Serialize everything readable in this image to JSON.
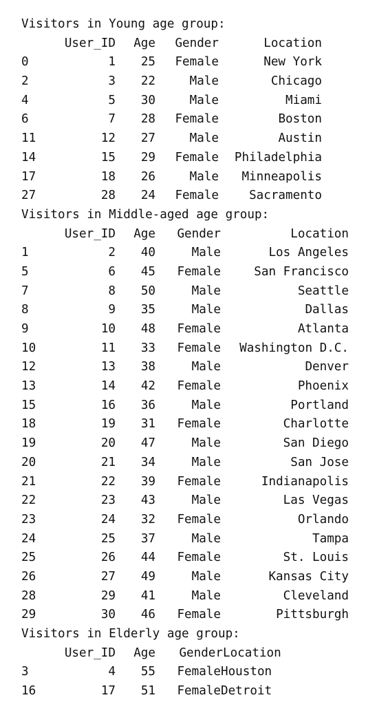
{
  "groups": [
    {
      "key": "young",
      "title": "Visitors in Young age group:",
      "headers": [
        "",
        "User_ID",
        "Age",
        "Gender",
        "Location"
      ],
      "rows": [
        [
          "0",
          "1",
          "25",
          "Female",
          "New York"
        ],
        [
          "2",
          "3",
          "22",
          "Male",
          "Chicago"
        ],
        [
          "4",
          "5",
          "30",
          "Male",
          "Miami"
        ],
        [
          "6",
          "7",
          "28",
          "Female",
          "Boston"
        ],
        [
          "11",
          "12",
          "27",
          "Male",
          "Austin"
        ],
        [
          "14",
          "15",
          "29",
          "Female",
          "Philadelphia"
        ],
        [
          "17",
          "18",
          "26",
          "Male",
          "Minneapolis"
        ],
        [
          "27",
          "28",
          "24",
          "Female",
          "Sacramento"
        ]
      ]
    },
    {
      "key": "middle",
      "title": "Visitors in Middle-aged age group:",
      "headers": [
        "",
        "User_ID",
        "Age",
        "Gender",
        "Location"
      ],
      "rows": [
        [
          "1",
          "2",
          "40",
          "Male",
          "Los Angeles"
        ],
        [
          "5",
          "6",
          "45",
          "Female",
          "San Francisco"
        ],
        [
          "7",
          "8",
          "50",
          "Male",
          "Seattle"
        ],
        [
          "8",
          "9",
          "35",
          "Male",
          "Dallas"
        ],
        [
          "9",
          "10",
          "48",
          "Female",
          "Atlanta"
        ],
        [
          "10",
          "11",
          "33",
          "Female",
          "Washington D.C."
        ],
        [
          "12",
          "13",
          "38",
          "Male",
          "Denver"
        ],
        [
          "13",
          "14",
          "42",
          "Female",
          "Phoenix"
        ],
        [
          "15",
          "16",
          "36",
          "Male",
          "Portland"
        ],
        [
          "18",
          "19",
          "31",
          "Female",
          "Charlotte"
        ],
        [
          "19",
          "20",
          "47",
          "Male",
          "San Diego"
        ],
        [
          "20",
          "21",
          "34",
          "Male",
          "San Jose"
        ],
        [
          "21",
          "22",
          "39",
          "Female",
          "Indianapolis"
        ],
        [
          "22",
          "23",
          "43",
          "Male",
          "Las Vegas"
        ],
        [
          "23",
          "24",
          "32",
          "Female",
          "Orlando"
        ],
        [
          "24",
          "25",
          "37",
          "Male",
          "Tampa"
        ],
        [
          "25",
          "26",
          "44",
          "Female",
          "St. Louis"
        ],
        [
          "26",
          "27",
          "49",
          "Male",
          "Kansas City"
        ],
        [
          "28",
          "29",
          "41",
          "Male",
          "Cleveland"
        ],
        [
          "29",
          "30",
          "46",
          "Female",
          "Pittsburgh"
        ]
      ]
    },
    {
      "key": "elderly",
      "title": "Visitors in Elderly age group:",
      "headers": [
        "",
        "User_ID",
        "Age",
        "Gender",
        "Location"
      ],
      "rows": [
        [
          "3",
          "4",
          "55",
          "Female",
          "Houston"
        ],
        [
          "16",
          "17",
          "51",
          "Female",
          "Detroit"
        ]
      ]
    }
  ]
}
